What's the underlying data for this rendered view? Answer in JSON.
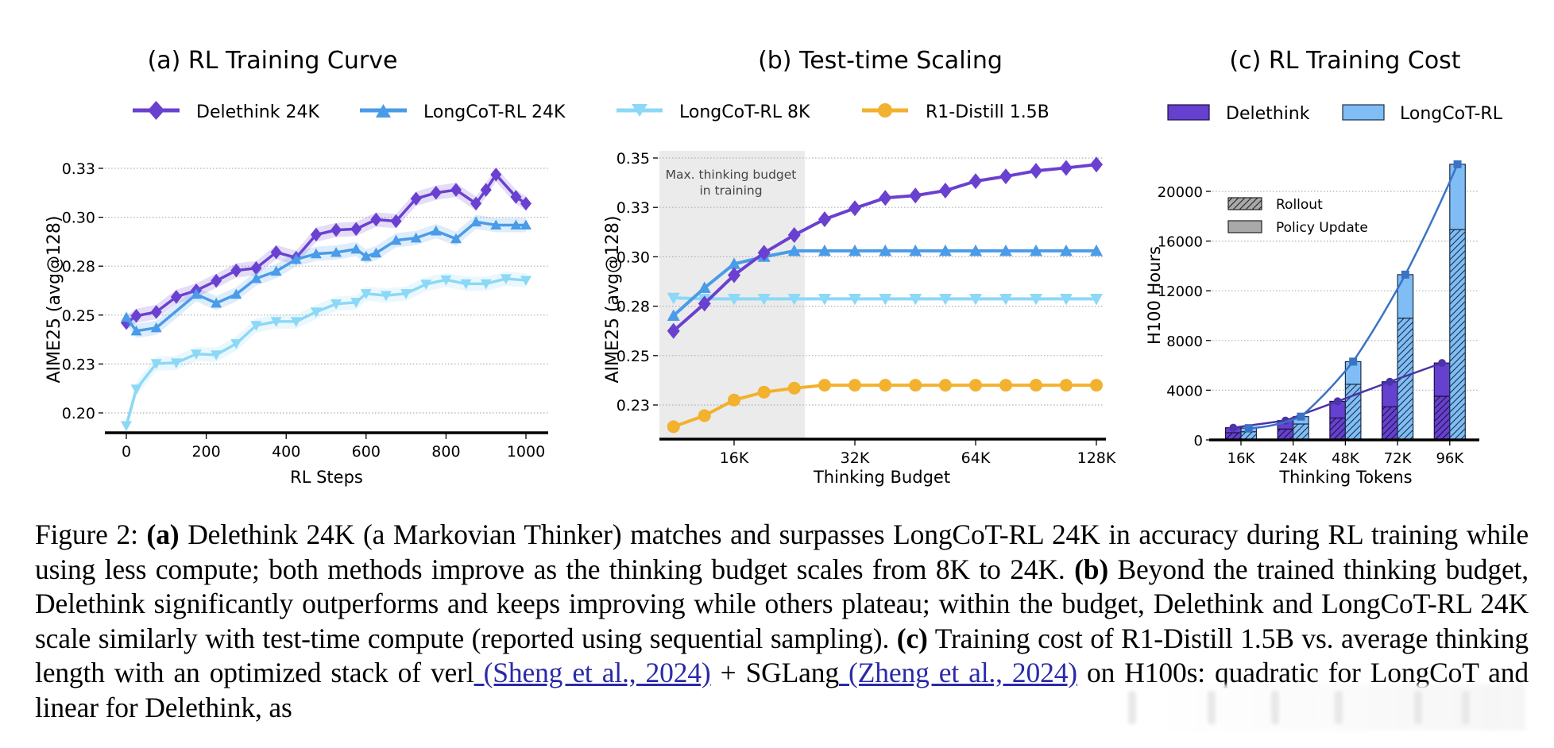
{
  "figure": {
    "legend_top": [
      {
        "name": "Delethink 24K",
        "color": "#6a40d0",
        "marker": "diamond"
      },
      {
        "name": "LongCoT-RL 24K",
        "color": "#4a9be8",
        "marker": "triangle-up"
      },
      {
        "name": "LongCoT-RL 8K",
        "color": "#8cd8f6",
        "marker": "triangle-down"
      },
      {
        "name": "R1-Distill 1.5B",
        "color": "#f2b12e",
        "marker": "circle"
      }
    ]
  },
  "chart_data": [
    {
      "type": "line",
      "title": "(a) RL Training Curve",
      "xlabel": "RL Steps",
      "ylabel": "AIME25 (avg@128)",
      "xlim": [
        0,
        1000
      ],
      "ylim": [
        0.19,
        0.335
      ],
      "xticks": [
        0,
        200,
        400,
        600,
        800,
        1000
      ],
      "xtick_labels": [
        "0",
        "200",
        "400",
        "600",
        "800",
        "1000"
      ],
      "yticks": [
        0.2,
        0.225,
        0.25,
        0.275,
        0.3,
        0.325
      ],
      "ytick_labels": [
        "0.20",
        "0.23",
        "0.25",
        "0.28",
        "0.30",
        "0.33"
      ],
      "grid": "horizontal dotted",
      "shaded_band": "std around mean",
      "series": [
        {
          "name": "Delethink 24K",
          "color": "#6a40d0",
          "marker": "diamond",
          "x": [
            0,
            25,
            75,
            125,
            175,
            225,
            275,
            325,
            375,
            425,
            475,
            525,
            575,
            625,
            675,
            725,
            775,
            825,
            875,
            900,
            925,
            975,
            1000
          ],
          "y": [
            0.246,
            0.2496,
            0.2516,
            0.2593,
            0.2626,
            0.2675,
            0.2728,
            0.274,
            0.2821,
            0.2793,
            0.2911,
            0.2935,
            0.294,
            0.2988,
            0.298,
            0.3095,
            0.3125,
            0.314,
            0.307,
            0.314,
            0.3218,
            0.3104,
            0.307
          ]
        },
        {
          "name": "LongCoT-RL 24K",
          "color": "#4a9be8",
          "marker": "triangle-up",
          "x": [
            0,
            25,
            75,
            175,
            225,
            275,
            325,
            375,
            425,
            475,
            525,
            575,
            600,
            625,
            675,
            725,
            775,
            825,
            875,
            925,
            975,
            1000
          ],
          "y": [
            0.2488,
            0.2419,
            0.2435,
            0.2606,
            0.2561,
            0.2606,
            0.2687,
            0.2724,
            0.2785,
            0.2813,
            0.282,
            0.2837,
            0.28,
            0.2817,
            0.2882,
            0.2894,
            0.293,
            0.289,
            0.2976,
            0.296,
            0.296,
            0.296
          ]
        },
        {
          "name": "LongCoT-RL 8K",
          "color": "#8cd8f6",
          "marker": "triangle-down",
          "x": [
            0,
            25,
            75,
            125,
            175,
            225,
            275,
            325,
            375,
            425,
            475,
            525,
            575,
            600,
            650,
            700,
            750,
            800,
            850,
            900,
            950,
            1000
          ],
          "y": [
            0.1935,
            0.2122,
            0.2252,
            0.2256,
            0.2301,
            0.2297,
            0.2354,
            0.2447,
            0.2467,
            0.2467,
            0.2516,
            0.2557,
            0.2565,
            0.261,
            0.26,
            0.261,
            0.2658,
            0.268,
            0.266,
            0.266,
            0.2686,
            0.2678
          ]
        }
      ]
    },
    {
      "type": "line",
      "title": "(b) Test-time Scaling",
      "xlabel": "Thinking Budget",
      "ylabel": "AIME25 (avg@128)",
      "xscale": "log2",
      "xlim_k": [
        9,
        135
      ],
      "ylim": [
        0.212,
        0.352
      ],
      "xticks_k": [
        16,
        32,
        64,
        128
      ],
      "xtick_labels": [
        "16K",
        "32K",
        "64K",
        "128K"
      ],
      "yticks": [
        0.225,
        0.25,
        0.275,
        0.3,
        0.325,
        0.35
      ],
      "ytick_labels": [
        "0.23",
        "0.25",
        "0.28",
        "0.30",
        "0.33",
        "0.35"
      ],
      "grid": "horizontal dotted",
      "annotation": {
        "text_line1": "Max. thinking budget",
        "text_line2": "in training",
        "shaded_range_k": [
          9,
          24
        ]
      },
      "x_k": [
        11.3,
        13.5,
        16.0,
        19.0,
        22.6,
        26.9,
        32.0,
        38.1,
        45.3,
        53.8,
        64.0,
        76.1,
        90.5,
        107.6,
        128.0
      ],
      "series": [
        {
          "name": "Delethink 24K",
          "color": "#6a40d0",
          "marker": "diamond",
          "y": [
            0.2625,
            0.2763,
            0.2907,
            0.302,
            0.311,
            0.319,
            0.3246,
            0.3298,
            0.331,
            0.3335,
            0.3383,
            0.3407,
            0.3435,
            0.345,
            0.3467
          ]
        },
        {
          "name": "LongCoT-RL 24K",
          "color": "#4a9be8",
          "marker": "triangle-up",
          "y": [
            0.2702,
            0.2843,
            0.2964,
            0.3,
            0.303,
            0.303,
            0.303,
            0.303,
            0.303,
            0.303,
            0.303,
            0.303,
            0.303,
            0.303,
            0.303
          ]
        },
        {
          "name": "LongCoT-RL 8K",
          "color": "#8cd8f6",
          "marker": "triangle-down",
          "y": [
            0.2792,
            0.2787,
            0.2787,
            0.2787,
            0.2787,
            0.2787,
            0.2787,
            0.2787,
            0.2787,
            0.2787,
            0.2787,
            0.2787,
            0.2787,
            0.2787,
            0.2787
          ]
        },
        {
          "name": "R1-Distill 1.5B",
          "color": "#f2b12e",
          "marker": "circle",
          "y": [
            0.214,
            0.2196,
            0.2275,
            0.2315,
            0.2335,
            0.235,
            0.235,
            0.235,
            0.235,
            0.235,
            0.235,
            0.235,
            0.235,
            0.235,
            0.235
          ]
        }
      ]
    },
    {
      "type": "bar",
      "title": "(c) RL Training Cost",
      "xlabel": "Thinking Tokens",
      "ylabel": "H100 Hours",
      "categories": [
        "16K",
        "24K",
        "48K",
        "72K",
        "96K"
      ],
      "ylim": [
        0,
        22500
      ],
      "yticks": [
        0,
        4000,
        8000,
        12000,
        16000,
        20000
      ],
      "ytick_labels": [
        "0",
        "4000",
        "8000",
        "12000",
        "16000",
        "20000"
      ],
      "grid": "horizontal dotted",
      "legend": [
        {
          "name": "Delethink",
          "color": "#6640cf"
        },
        {
          "name": "LongCoT-RL",
          "color": "#7fbdf4"
        }
      ],
      "component_legend": [
        {
          "name": "Rollout",
          "pattern": "hatched"
        },
        {
          "name": "Policy Update",
          "pattern": "solid"
        }
      ],
      "series": [
        {
          "name": "Delethink",
          "color": "#6640cf",
          "line_color": "#4b34a8",
          "total": [
            980,
            1555,
            3105,
            4680,
            6190
          ],
          "rollout": [
            575,
            875,
            1765,
            2660,
            3510
          ]
        },
        {
          "name": "LongCoT-RL",
          "color": "#7fbdf4",
          "line_color": "#3b73c4",
          "total": [
            950,
            1875,
            6300,
            13300,
            22180
          ],
          "rollout": [
            660,
            1280,
            4475,
            9800,
            16930
          ]
        }
      ]
    }
  ],
  "caption": {
    "prefix": "Figure 2: ",
    "a_label": "(a)",
    "a_text": " Delethink 24K (a Markovian Thinker) matches and surpasses LongCoT-RL 24K in accuracy during RL training while using less compute; both methods improve as the thinking budget scales from 8K to 24K. ",
    "b_label": "(b)",
    "b_text": " Beyond the trained thinking budget, Delethink significantly outperforms and keeps improving while others plateau; within the budget, Delethink and LongCoT-RL 24K scale similarly with test-time compute (reported using sequential sampling). ",
    "c_label": "(c)",
    "c_text": " Training cost of R1-Distill 1.5B vs. average thinking length with an optimized stack of verl",
    "cite1": " (Sheng et al., 2024)",
    "mid_text": " + SGLang",
    "cite2": " (Zheng et al., 2024)",
    "end_text": " on H100s: quadratic for LongCoT and linear for Delethink, as"
  }
}
